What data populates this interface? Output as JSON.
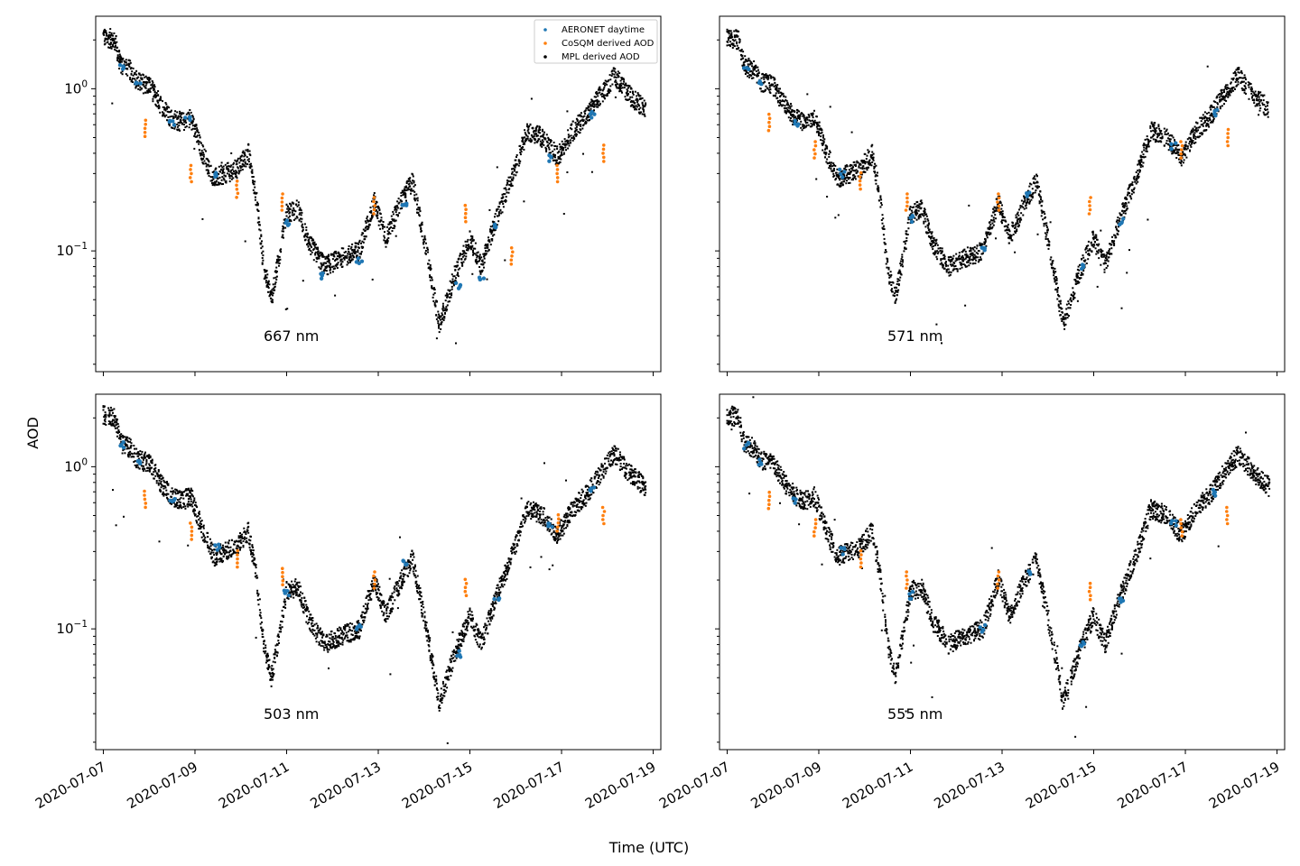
{
  "chart_data": {
    "type": "scatter",
    "layout": "2x2 grid, shared x and y axes",
    "xlabel": "Time (UTC)",
    "ylabel": "AOD",
    "yscale": "log",
    "ylim": [
      0.018,
      2.8
    ],
    "xlim": [
      "2020-07-06T20:00",
      "2020-07-19T04:00"
    ],
    "x_ticks": [
      "2020-07-07",
      "2020-07-09",
      "2020-07-11",
      "2020-07-13",
      "2020-07-15",
      "2020-07-17",
      "2020-07-19"
    ],
    "y_ticks": [
      {
        "value": 0.1,
        "base": "10",
        "exp": "−1"
      },
      {
        "value": 1,
        "base": "10",
        "exp": "0"
      }
    ],
    "legend": {
      "position": "top-right of first panel",
      "entries": [
        {
          "label": "AERONET daytime",
          "color": "#1f77b4"
        },
        {
          "label": "CoSQM derived AOD",
          "color": "#ff7f0e"
        },
        {
          "label": "MPL derived AOD",
          "color": "#000000"
        }
      ]
    },
    "series_style": [
      {
        "name": "AERONET daytime",
        "color": "#1f77b4",
        "marker": "dot"
      },
      {
        "name": "CoSQM derived AOD",
        "color": "#ff7f0e",
        "marker": "dot"
      },
      {
        "name": "MPL derived AOD",
        "color": "#000000",
        "marker": "dot"
      }
    ],
    "mpl_trend": [
      [
        "2020-07-07T00:00",
        2.1
      ],
      [
        "2020-07-07T06:00",
        2.0
      ],
      [
        "2020-07-07T09:00",
        1.4
      ],
      [
        "2020-07-07T14:00",
        1.3
      ],
      [
        "2020-07-07T18:00",
        1.1
      ],
      [
        "2020-07-08T00:00",
        1.05
      ],
      [
        "2020-07-08T06:00",
        0.8
      ],
      [
        "2020-07-08T12:00",
        0.65
      ],
      [
        "2020-07-08T18:00",
        0.62
      ],
      [
        "2020-07-08T22:00",
        0.66
      ],
      [
        "2020-07-09T04:00",
        0.4
      ],
      [
        "2020-07-09T10:00",
        0.28
      ],
      [
        "2020-07-09T16:00",
        0.3
      ],
      [
        "2020-07-09T22:00",
        0.32
      ],
      [
        "2020-07-10T04:00",
        0.4
      ],
      [
        "2020-07-10T08:00",
        0.22
      ],
      [
        "2020-07-10T12:00",
        0.08
      ],
      [
        "2020-07-10T16:00",
        0.05
      ],
      [
        "2020-07-10T20:00",
        0.09
      ],
      [
        "2020-07-11T00:00",
        0.17
      ],
      [
        "2020-07-11T06:00",
        0.18
      ],
      [
        "2020-07-11T12:00",
        0.11
      ],
      [
        "2020-07-11T20:00",
        0.08
      ],
      [
        "2020-07-12T04:00",
        0.09
      ],
      [
        "2020-07-12T14:00",
        0.1
      ],
      [
        "2020-07-12T22:00",
        0.2
      ],
      [
        "2020-07-13T04:00",
        0.12
      ],
      [
        "2020-07-13T12:00",
        0.2
      ],
      [
        "2020-07-13T18:00",
        0.27
      ],
      [
        "2020-07-14T02:00",
        0.09
      ],
      [
        "2020-07-14T08:00",
        0.035
      ],
      [
        "2020-07-14T16:00",
        0.07
      ],
      [
        "2020-07-15T00:00",
        0.12
      ],
      [
        "2020-07-15T06:00",
        0.08
      ],
      [
        "2020-07-15T14:00",
        0.16
      ],
      [
        "2020-07-15T22:00",
        0.28
      ],
      [
        "2020-07-16T06:00",
        0.55
      ],
      [
        "2020-07-16T14:00",
        0.5
      ],
      [
        "2020-07-16T22:00",
        0.38
      ],
      [
        "2020-07-17T06:00",
        0.55
      ],
      [
        "2020-07-17T14:00",
        0.7
      ],
      [
        "2020-07-17T20:00",
        0.9
      ],
      [
        "2020-07-18T04:00",
        1.2
      ],
      [
        "2020-07-18T12:00",
        0.9
      ],
      [
        "2020-07-18T20:00",
        0.75
      ]
    ],
    "panels": [
      {
        "label": "667 nm",
        "row": 0,
        "col": 0,
        "aeronet": [
          [
            "2020-07-07T10:00",
            1.35
          ],
          [
            "2020-07-07T18:00",
            1.05
          ],
          [
            "2020-07-08T12:00",
            0.62
          ],
          [
            "2020-07-08T20:00",
            0.65
          ],
          [
            "2020-07-09T12:00",
            0.3
          ],
          [
            "2020-07-11T00:00",
            0.15
          ],
          [
            "2020-07-11T18:00",
            0.07
          ],
          [
            "2020-07-12T14:00",
            0.085
          ],
          [
            "2020-07-13T14:00",
            0.2
          ],
          [
            "2020-07-14T18:00",
            0.06
          ],
          [
            "2020-07-15T06:00",
            0.07
          ],
          [
            "2020-07-15T14:00",
            0.14
          ],
          [
            "2020-07-16T18:00",
            0.37
          ],
          [
            "2020-07-17T16:00",
            0.7
          ]
        ],
        "cosqm": [
          [
            "2020-07-07T22:00",
            0.57
          ],
          [
            "2020-07-08T22:00",
            0.3
          ],
          [
            "2020-07-09T22:00",
            0.24
          ],
          [
            "2020-07-10T22:00",
            0.2
          ],
          [
            "2020-07-12T22:00",
            0.19
          ],
          [
            "2020-07-14T22:00",
            0.17
          ],
          [
            "2020-07-15T22:00",
            0.093
          ],
          [
            "2020-07-16T22:00",
            0.3
          ],
          [
            "2020-07-17T22:00",
            0.4
          ]
        ]
      },
      {
        "label": "571 nm",
        "row": 0,
        "col": 1,
        "aeronet": [
          [
            "2020-07-07T10:00",
            1.35
          ],
          [
            "2020-07-07T18:00",
            1.05
          ],
          [
            "2020-07-08T12:00",
            0.62
          ],
          [
            "2020-07-09T12:00",
            0.3
          ],
          [
            "2020-07-11T00:00",
            0.16
          ],
          [
            "2020-07-12T14:00",
            0.1
          ],
          [
            "2020-07-13T14:00",
            0.22
          ],
          [
            "2020-07-14T18:00",
            0.08
          ],
          [
            "2020-07-15T14:00",
            0.15
          ],
          [
            "2020-07-16T18:00",
            0.45
          ],
          [
            "2020-07-17T16:00",
            0.7
          ]
        ],
        "cosqm": [
          [
            "2020-07-07T22:00",
            0.62
          ],
          [
            "2020-07-08T22:00",
            0.42
          ],
          [
            "2020-07-09T22:00",
            0.27
          ],
          [
            "2020-07-10T22:00",
            0.2
          ],
          [
            "2020-07-12T22:00",
            0.2
          ],
          [
            "2020-07-14T22:00",
            0.19
          ],
          [
            "2020-07-16T22:00",
            0.42
          ],
          [
            "2020-07-17T22:00",
            0.5
          ]
        ]
      },
      {
        "label": "503 nm",
        "row": 1,
        "col": 0,
        "aeronet": [
          [
            "2020-07-07T10:00",
            1.35
          ],
          [
            "2020-07-07T18:00",
            1.05
          ],
          [
            "2020-07-08T12:00",
            0.62
          ],
          [
            "2020-07-09T12:00",
            0.32
          ],
          [
            "2020-07-11T00:00",
            0.17
          ],
          [
            "2020-07-12T14:00",
            0.1
          ],
          [
            "2020-07-13T14:00",
            0.25
          ],
          [
            "2020-07-14T18:00",
            0.07
          ],
          [
            "2020-07-15T14:00",
            0.16
          ],
          [
            "2020-07-16T18:00",
            0.45
          ],
          [
            "2020-07-17T16:00",
            0.72
          ]
        ],
        "cosqm": [
          [
            "2020-07-07T22:00",
            0.63
          ],
          [
            "2020-07-08T22:00",
            0.4
          ],
          [
            "2020-07-09T22:00",
            0.27
          ],
          [
            "2020-07-10T22:00",
            0.21
          ],
          [
            "2020-07-12T22:00",
            0.2
          ],
          [
            "2020-07-14T22:00",
            0.18
          ],
          [
            "2020-07-16T22:00",
            0.45
          ],
          [
            "2020-07-17T22:00",
            0.5
          ]
        ]
      },
      {
        "label": "555 nm",
        "row": 1,
        "col": 1,
        "aeronet": [
          [
            "2020-07-07T10:00",
            1.35
          ],
          [
            "2020-07-07T18:00",
            1.05
          ],
          [
            "2020-07-08T12:00",
            0.62
          ],
          [
            "2020-07-09T12:00",
            0.3
          ],
          [
            "2020-07-11T00:00",
            0.16
          ],
          [
            "2020-07-12T14:00",
            0.1
          ],
          [
            "2020-07-13T14:00",
            0.22
          ],
          [
            "2020-07-14T18:00",
            0.08
          ],
          [
            "2020-07-15T14:00",
            0.15
          ],
          [
            "2020-07-16T18:00",
            0.45
          ],
          [
            "2020-07-17T16:00",
            0.7
          ]
        ],
        "cosqm": [
          [
            "2020-07-07T22:00",
            0.62
          ],
          [
            "2020-07-08T22:00",
            0.42
          ],
          [
            "2020-07-09T22:00",
            0.27
          ],
          [
            "2020-07-10T22:00",
            0.2
          ],
          [
            "2020-07-12T22:00",
            0.2
          ],
          [
            "2020-07-14T22:00",
            0.17
          ],
          [
            "2020-07-16T22:00",
            0.42
          ],
          [
            "2020-07-17T22:00",
            0.5
          ]
        ]
      }
    ]
  }
}
